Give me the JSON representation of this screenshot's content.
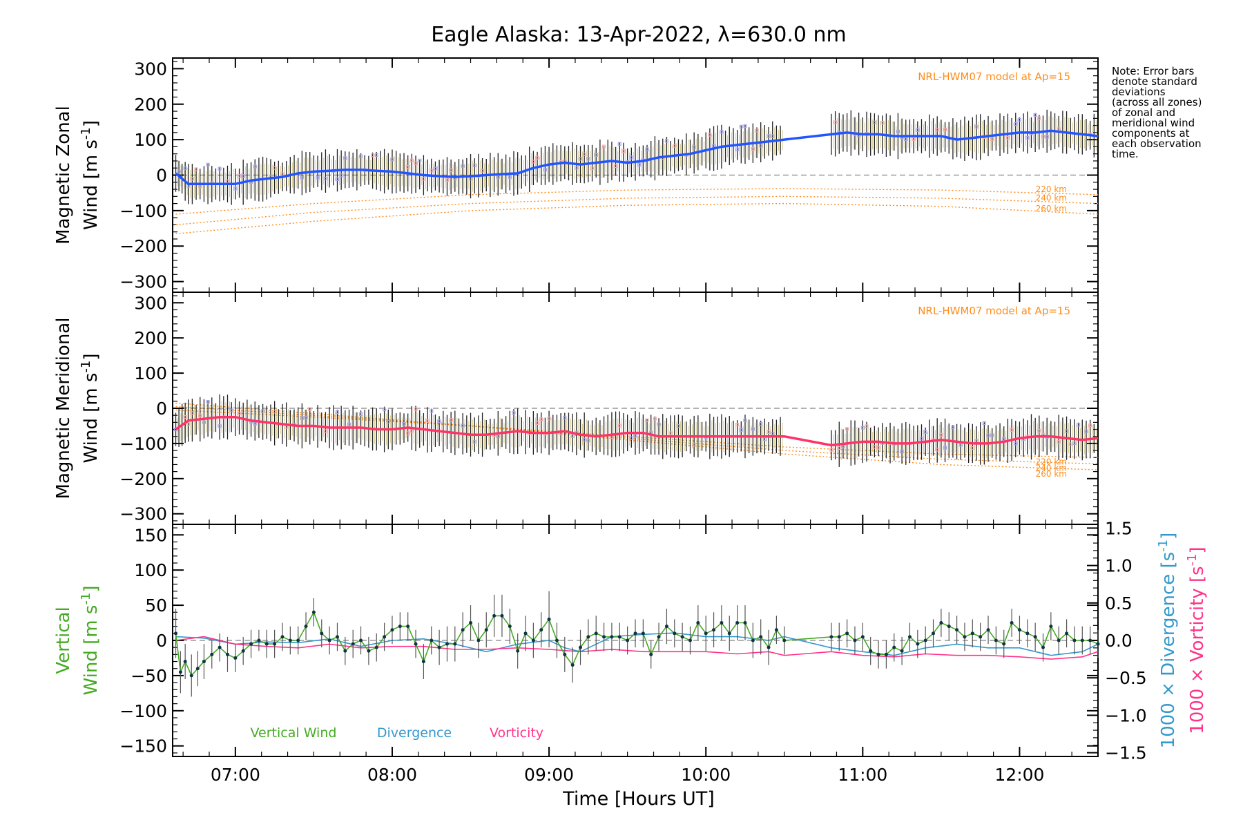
{
  "title": "Eagle Alaska: 13-Apr-2022, λ=630.0 nm",
  "note": [
    "Note: Error bars",
    "denote standard",
    "deviations",
    "(across all zones)",
    "of zonal and",
    "meridional wind",
    "components at",
    "each observation",
    "time."
  ],
  "xaxis": {
    "label": "Time [Hours UT]",
    "range_hours": [
      6.6,
      12.5
    ],
    "ticks": [
      7,
      8,
      9,
      10,
      11,
      12
    ],
    "tick_labels": [
      "07:00",
      "08:00",
      "09:00",
      "10:00",
      "11:00",
      "12:00"
    ]
  },
  "colors": {
    "zonal": "#2255ff",
    "meridional": "#ff3366",
    "vertical": "#44aa22",
    "divergence": "#3399cc",
    "vorticity": "#ff3388",
    "model": "#ff8c1a",
    "zone_squares_blue": "#aaaaee",
    "zone_squares_pink": "#ffaaaa"
  },
  "chart_data": [
    {
      "type": "line",
      "panel": "zonal",
      "ylabel_line1": "Magnetic Zonal",
      "ylabel_line2": "Wind [m s",
      "ylabel_sup": "-1",
      "ylabel_close": "]",
      "ylim": [
        -330,
        330
      ],
      "yticks": [
        -300,
        -200,
        -100,
        0,
        100,
        200,
        300
      ],
      "ytick_labels": [
        "−300",
        "−200",
        "−100",
        "0",
        "100",
        "200",
        "300"
      ],
      "model_label": "NRL-HWM07 model at Ap=15",
      "series": [
        {
          "x": [
            6.62,
            6.7,
            6.8,
            6.9,
            7.0,
            7.1,
            7.2,
            7.3,
            7.4,
            7.5,
            7.6,
            7.7,
            7.8,
            7.9,
            8.0,
            8.1,
            8.2,
            8.3,
            8.4,
            8.5,
            8.6,
            8.7,
            8.8,
            8.9,
            9.0,
            9.1,
            9.2,
            9.3,
            9.4,
            9.5,
            9.6,
            9.7,
            9.8,
            9.9,
            10.0,
            10.1,
            10.2,
            10.3,
            10.4,
            10.5,
            10.8,
            10.9,
            11.0,
            11.1,
            11.2,
            11.3,
            11.4,
            11.5,
            11.6,
            11.7,
            11.8,
            11.9,
            12.0,
            12.1,
            12.2,
            12.3,
            12.4,
            12.5
          ],
          "y": [
            5,
            -25,
            -25,
            -25,
            -25,
            -15,
            -10,
            -5,
            5,
            10,
            12,
            15,
            15,
            12,
            10,
            5,
            0,
            -3,
            -5,
            -3,
            0,
            3,
            5,
            20,
            30,
            35,
            30,
            35,
            40,
            35,
            40,
            50,
            55,
            60,
            70,
            80,
            85,
            90,
            95,
            100,
            115,
            120,
            115,
            115,
            110,
            110,
            110,
            110,
            100,
            105,
            110,
            115,
            120,
            120,
            125,
            120,
            115,
            110
          ]
        }
      ],
      "model": [
        {
          "label": "220 km",
          "x": [
            6.62,
            7.5,
            8.5,
            9.5,
            10.5,
            11.5,
            12.5
          ],
          "y": [
            -110,
            -80,
            -55,
            -42,
            -38,
            -42,
            -55
          ]
        },
        {
          "label": "240 km",
          "x": [
            6.62,
            7.5,
            8.5,
            9.5,
            10.5,
            11.5,
            12.5
          ],
          "y": [
            -140,
            -105,
            -80,
            -65,
            -60,
            -65,
            -80
          ]
        },
        {
          "label": "260 km",
          "x": [
            6.62,
            7.5,
            8.5,
            9.5,
            10.5,
            11.5,
            12.5
          ],
          "y": [
            -165,
            -130,
            -100,
            -85,
            -80,
            -88,
            -110
          ]
        }
      ]
    },
    {
      "type": "line",
      "panel": "meridional",
      "ylabel_line1": "Magnetic Meridional",
      "ylabel_line2": "Wind [m s",
      "ylabel_sup": "-1",
      "ylabel_close": "]",
      "ylim": [
        -330,
        330
      ],
      "yticks": [
        -300,
        -200,
        -100,
        0,
        100,
        200,
        300
      ],
      "ytick_labels": [
        "−300",
        "−200",
        "−100",
        "0",
        "100",
        "200",
        "300"
      ],
      "model_label": "NRL-HWM07 model at Ap=15",
      "series": [
        {
          "x": [
            6.62,
            6.7,
            6.8,
            6.9,
            7.0,
            7.1,
            7.2,
            7.3,
            7.4,
            7.5,
            7.6,
            7.7,
            7.8,
            7.9,
            8.0,
            8.1,
            8.2,
            8.3,
            8.4,
            8.5,
            8.6,
            8.7,
            8.8,
            8.9,
            9.0,
            9.1,
            9.2,
            9.3,
            9.4,
            9.5,
            9.6,
            9.7,
            9.8,
            9.9,
            10.0,
            10.1,
            10.2,
            10.3,
            10.4,
            10.5,
            10.8,
            10.9,
            11.0,
            11.1,
            11.2,
            11.3,
            11.4,
            11.5,
            11.6,
            11.7,
            11.8,
            11.9,
            12.0,
            12.1,
            12.2,
            12.3,
            12.4,
            12.5
          ],
          "y": [
            -60,
            -35,
            -30,
            -25,
            -25,
            -35,
            -40,
            -45,
            -50,
            -50,
            -55,
            -55,
            -55,
            -60,
            -60,
            -55,
            -60,
            -65,
            -70,
            -75,
            -75,
            -70,
            -65,
            -70,
            -70,
            -65,
            -75,
            -80,
            -75,
            -70,
            -70,
            -80,
            -80,
            -80,
            -80,
            -80,
            -80,
            -80,
            -80,
            -80,
            -105,
            -100,
            -95,
            -95,
            -100,
            -100,
            -95,
            -90,
            -95,
            -100,
            -100,
            -95,
            -85,
            -80,
            -80,
            -85,
            -90,
            -85
          ]
        }
      ],
      "model": [
        {
          "label": "220 km",
          "x": [
            6.62,
            7.5,
            8.5,
            9.5,
            10.5,
            11.5,
            12.5
          ],
          "y": [
            -5,
            -25,
            -50,
            -80,
            -110,
            -130,
            -140
          ]
        },
        {
          "label": "240 km",
          "x": [
            6.62,
            7.5,
            8.5,
            9.5,
            10.5,
            11.5,
            12.5
          ],
          "y": [
            5,
            -20,
            -50,
            -85,
            -120,
            -145,
            -158
          ]
        },
        {
          "label": "260 km",
          "x": [
            6.62,
            7.5,
            8.5,
            9.5,
            10.5,
            11.5,
            12.5
          ],
          "y": [
            15,
            -15,
            -50,
            -90,
            -130,
            -160,
            -175
          ]
        }
      ]
    },
    {
      "type": "line",
      "panel": "vertical",
      "ylabel_line1": "Vertical",
      "ylabel_line2": "Wind [m s",
      "ylabel_sup": "-1",
      "ylabel_close": "]",
      "ylim": [
        -165,
        165
      ],
      "yticks": [
        -150,
        -100,
        -50,
        0,
        50,
        100,
        150
      ],
      "ytick_labels": [
        "−150",
        "−100",
        "−50",
        "0",
        "50",
        "100",
        "150"
      ],
      "y2lim": [
        -1.55,
        1.55
      ],
      "y2ticks": [
        -1.5,
        -1.0,
        -0.5,
        0.0,
        0.5,
        1.0,
        1.5
      ],
      "y2tick_labels": [
        "−1.5",
        "−1.0",
        "−0.5",
        "0.0",
        "0.5",
        "1.0",
        "1.5"
      ],
      "y2label_div": "1000 × Divergence [s",
      "y2label_vort": "1000 × Vorticity [s",
      "y2label_sup": "-1",
      "y2label_close": "]",
      "legend": [
        "Vertical Wind",
        "Divergence",
        "Vorticity"
      ],
      "series": [
        {
          "name": "Vertical Wind",
          "x": [
            6.62,
            6.65,
            6.68,
            6.72,
            6.76,
            6.8,
            6.85,
            6.9,
            6.95,
            7.0,
            7.05,
            7.1,
            7.15,
            7.2,
            7.25,
            7.3,
            7.35,
            7.4,
            7.45,
            7.5,
            7.55,
            7.6,
            7.65,
            7.7,
            7.75,
            7.8,
            7.85,
            7.9,
            7.95,
            8.0,
            8.05,
            8.1,
            8.15,
            8.2,
            8.25,
            8.3,
            8.35,
            8.4,
            8.45,
            8.5,
            8.55,
            8.6,
            8.65,
            8.7,
            8.75,
            8.8,
            8.85,
            8.9,
            8.95,
            9.0,
            9.05,
            9.1,
            9.15,
            9.2,
            9.25,
            9.3,
            9.35,
            9.4,
            9.45,
            9.5,
            9.55,
            9.6,
            9.65,
            9.7,
            9.75,
            9.8,
            9.85,
            9.9,
            9.95,
            10.0,
            10.05,
            10.1,
            10.15,
            10.2,
            10.25,
            10.3,
            10.35,
            10.4,
            10.45,
            10.5,
            10.8,
            10.85,
            10.9,
            10.95,
            11.0,
            11.05,
            11.1,
            11.15,
            11.2,
            11.25,
            11.3,
            11.35,
            11.4,
            11.45,
            11.5,
            11.55,
            11.6,
            11.65,
            11.7,
            11.75,
            11.8,
            11.85,
            11.9,
            11.95,
            12.0,
            12.05,
            12.1,
            12.15,
            12.2,
            12.25,
            12.3,
            12.35,
            12.4,
            12.45,
            12.5
          ],
          "y": [
            10,
            -45,
            -30,
            -50,
            -40,
            -30,
            -20,
            -10,
            -20,
            -25,
            -15,
            -5,
            0,
            -5,
            -5,
            5,
            0,
            0,
            20,
            40,
            10,
            0,
            5,
            -15,
            -5,
            0,
            -15,
            -10,
            5,
            15,
            20,
            20,
            -5,
            -30,
            0,
            -10,
            -5,
            -5,
            15,
            25,
            0,
            15,
            35,
            35,
            20,
            -15,
            10,
            0,
            15,
            30,
            0,
            -20,
            -35,
            -10,
            5,
            10,
            5,
            5,
            5,
            0,
            10,
            10,
            -20,
            5,
            20,
            10,
            5,
            0,
            25,
            10,
            15,
            25,
            10,
            25,
            25,
            0,
            5,
            -10,
            15,
            0,
            5,
            5,
            10,
            0,
            5,
            -15,
            -20,
            -20,
            -10,
            -15,
            5,
            -5,
            0,
            10,
            25,
            20,
            15,
            5,
            10,
            5,
            15,
            0,
            -5,
            25,
            15,
            10,
            5,
            -10,
            20,
            0,
            10,
            0,
            0,
            0,
            -5
          ],
          "errors": [
            35,
            30,
            25,
            30,
            25,
            25,
            20,
            20,
            25,
            20,
            20,
            20,
            15,
            20,
            20,
            20,
            20,
            20,
            20,
            20,
            20,
            20,
            20,
            20,
            20,
            20,
            20,
            20,
            20,
            20,
            20,
            20,
            20,
            25,
            20,
            25,
            25,
            25,
            25,
            25,
            25,
            25,
            30,
            30,
            25,
            25,
            25,
            25,
            25,
            40,
            25,
            25,
            25,
            25,
            25,
            25,
            20,
            20,
            20,
            20,
            20,
            20,
            20,
            20,
            25,
            20,
            20,
            20,
            25,
            25,
            25,
            25,
            25,
            25,
            25,
            25,
            25,
            25,
            20,
            20,
            20,
            20,
            20,
            20,
            20,
            20,
            20,
            20,
            20,
            20,
            20,
            20,
            20,
            20,
            20,
            20,
            20,
            20,
            20,
            20,
            20,
            20,
            20,
            20,
            20,
            20,
            20,
            20,
            20,
            20,
            20,
            20,
            20,
            20,
            20
          ]
        },
        {
          "name": "Divergence",
          "x": [
            6.62,
            6.8,
            7.0,
            7.2,
            7.4,
            7.6,
            7.8,
            8.0,
            8.2,
            8.4,
            8.6,
            8.8,
            9.0,
            9.1,
            9.2,
            9.4,
            9.6,
            9.8,
            10.0,
            10.2,
            10.4,
            10.5,
            10.8,
            11.0,
            11.2,
            11.4,
            11.6,
            11.8,
            12.0,
            12.2,
            12.4,
            12.5
          ],
          "y": [
            0.05,
            0.03,
            -0.05,
            -0.02,
            -0.03,
            0.02,
            -0.08,
            0.0,
            0.02,
            -0.05,
            -0.15,
            -0.05,
            0.0,
            -0.1,
            -0.15,
            0.05,
            0.08,
            0.1,
            0.05,
            0.05,
            0.0,
            0.05,
            -0.1,
            -0.15,
            -0.2,
            -0.1,
            -0.05,
            -0.1,
            -0.1,
            -0.2,
            -0.15,
            -0.05
          ]
        },
        {
          "name": "Vorticity",
          "x": [
            6.62,
            6.8,
            7.0,
            7.2,
            7.4,
            7.6,
            7.8,
            8.0,
            8.2,
            8.4,
            8.6,
            8.8,
            9.0,
            9.2,
            9.4,
            9.6,
            9.8,
            10.0,
            10.2,
            10.4,
            10.5,
            10.8,
            11.0,
            11.2,
            11.4,
            11.6,
            11.8,
            12.0,
            12.2,
            12.4,
            12.5
          ],
          "y": [
            0.0,
            0.05,
            -0.05,
            -0.08,
            -0.1,
            -0.05,
            -0.1,
            -0.08,
            -0.08,
            -0.12,
            -0.12,
            -0.1,
            -0.12,
            -0.15,
            -0.12,
            -0.15,
            -0.15,
            -0.15,
            -0.18,
            -0.15,
            -0.2,
            -0.15,
            -0.2,
            -0.22,
            -0.18,
            -0.2,
            -0.2,
            -0.22,
            -0.25,
            -0.22,
            -0.15
          ]
        }
      ]
    }
  ]
}
